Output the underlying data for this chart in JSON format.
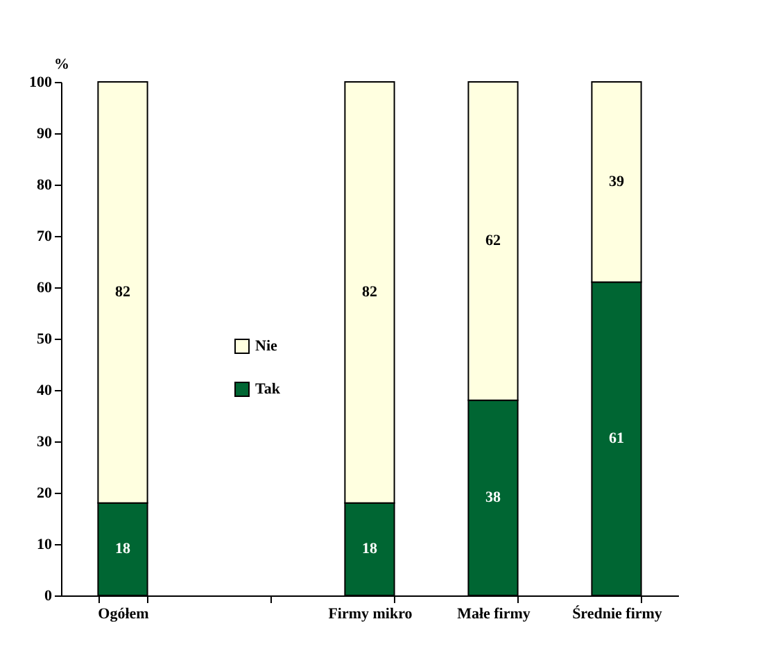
{
  "chart_data": {
    "type": "bar",
    "stacked": true,
    "ylabel": "%",
    "categories": [
      "Ogółem",
      null,
      "Firmy mikro",
      "Małe firmy",
      "Średnie firmy"
    ],
    "series": [
      {
        "name": "Tak",
        "color": "#006633",
        "values": [
          18,
          null,
          18,
          38,
          61
        ]
      },
      {
        "name": "Nie",
        "color": "#ffffe0",
        "values": [
          82,
          null,
          82,
          62,
          39
        ]
      }
    ],
    "ylim": [
      0,
      100
    ],
    "yticks": [
      0,
      10,
      20,
      30,
      40,
      50,
      60,
      70,
      80,
      90,
      100
    ],
    "data_labels": true,
    "legend": "left",
    "grid": false
  }
}
